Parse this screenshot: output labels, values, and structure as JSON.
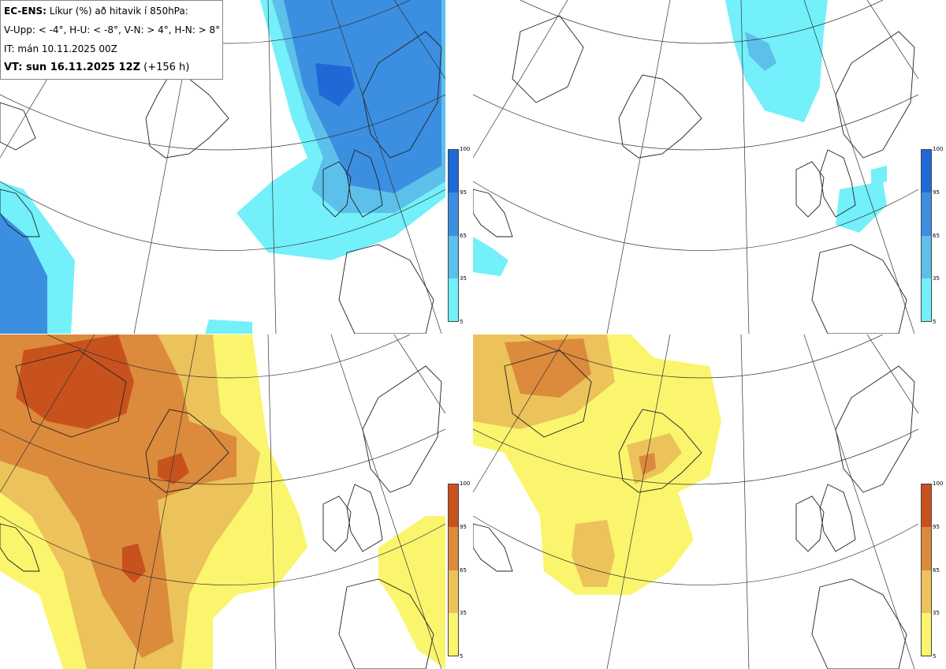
{
  "header": {
    "model": "EC-ENS:",
    "title": "Líkur (%) að hitavik í 850hPa:",
    "thresholds": "V-Upp: < -4°, H-U: < -8°, V-N: > 4°, H-N: > 8°",
    "initial_time": "IT: mán 10.11.2025 00Z",
    "valid_time": "VT: sun 16.11.2025 12Z",
    "lead": "(+156 h)"
  },
  "panels": [
    {
      "id": "V-Upp",
      "palette": "blue"
    },
    {
      "id": "H-U",
      "palette": "blue"
    },
    {
      "id": "V-N",
      "palette": "orange"
    },
    {
      "id": "H-N",
      "palette": "orange"
    }
  ],
  "colorbar": {
    "ticks": [
      "100",
      "95",
      "65",
      "35",
      "5"
    ],
    "blue_colors": [
      "#1f68d6",
      "#3b8ee0",
      "#5cc0ea",
      "#73f0fa"
    ],
    "orange_colors": [
      "#c8521e",
      "#dc8a3c",
      "#ecc25a",
      "#fbf56e"
    ]
  }
}
